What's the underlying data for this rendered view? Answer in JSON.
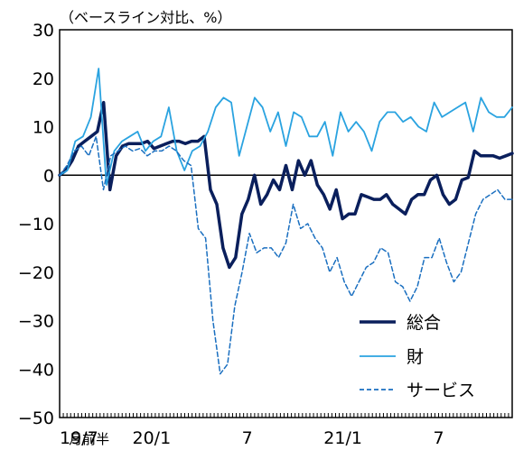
{
  "chart_data": {
    "type": "line",
    "unit_label": "（ベースライン対比、%）",
    "ylim": [
      -50,
      30
    ],
    "yticks": [
      30,
      20,
      10,
      0,
      -10,
      -20,
      -30,
      -40,
      -50
    ],
    "ytick_labels": [
      "30",
      "20",
      "10",
      "0",
      "−10",
      "−20",
      "−30",
      "−40",
      "−50"
    ],
    "x_tick_labels": [
      {
        "index": 0,
        "label": "19/7"
      },
      {
        "index": 8,
        "label": "月前半"
      },
      {
        "index": 25,
        "label": "20/1"
      },
      {
        "index": 51,
        "label": "7"
      },
      {
        "index": 77,
        "label": "21/1"
      },
      {
        "index": 103,
        "label": "7"
      }
    ],
    "n_points": 124,
    "legend_position": "bottom-right",
    "series": [
      {
        "name": "総合",
        "color": "#0a1f5c",
        "style": "solid",
        "width": 3.5,
        "values": [
          0,
          1,
          3,
          6,
          7,
          8,
          9,
          15,
          -3,
          4,
          6,
          6.5,
          6.5,
          6.5,
          7,
          5.5,
          6,
          6.5,
          7,
          7,
          6.5,
          7,
          7,
          8,
          -3,
          -6,
          -15,
          -19,
          -17,
          -8,
          -5,
          0,
          -6,
          -4,
          -1,
          -3,
          2,
          -3,
          3,
          0,
          3,
          -2,
          -4,
          -7,
          -3,
          -9,
          -8,
          -8,
          -4,
          -4.5,
          -5,
          -5,
          -4,
          -6,
          -7,
          -8,
          -5,
          -4,
          -4,
          -1,
          0,
          -4,
          -6,
          -5,
          -1,
          -0.5,
          5,
          4,
          4,
          4,
          3.5,
          4,
          4.5
        ],
        "note": ""
      },
      {
        "name": "財",
        "color": "#2aa3e0",
        "style": "solid",
        "width": 1.8,
        "values": [
          0,
          1,
          7,
          8,
          12,
          22,
          -2,
          5,
          7,
          8,
          9,
          5,
          7,
          8,
          14,
          5,
          1,
          5,
          6,
          9,
          14,
          16,
          15,
          4,
          10,
          16,
          14,
          9,
          13,
          6,
          13,
          12,
          8,
          8,
          11,
          4,
          13,
          9,
          11,
          9,
          5,
          11,
          13,
          13,
          11,
          12,
          10,
          9,
          15,
          12,
          13,
          14,
          15,
          9,
          16,
          13,
          12,
          12,
          14
        ]
      },
      {
        "name": "サービス",
        "color": "#1a6fc0",
        "style": "dashed",
        "width": 1.5,
        "values": [
          0,
          2,
          5,
          6,
          4,
          8,
          -3,
          4,
          5,
          6,
          5,
          5.5,
          4,
          5,
          5,
          6,
          5,
          3,
          2,
          -11,
          -13,
          -30,
          -41,
          -39,
          -27,
          -20,
          -12,
          -16,
          -15,
          -15,
          -17,
          -14,
          -6,
          -11,
          -10,
          -13,
          -15,
          -20,
          -17,
          -22,
          -25,
          -22,
          -19,
          -18,
          -15,
          -16,
          -22,
          -23,
          -26,
          -23,
          -17,
          -17,
          -13,
          -18,
          -22,
          -20,
          -14,
          -8,
          -5,
          -4,
          -3,
          -5,
          -5
        ],
        "note": ""
      }
    ]
  }
}
